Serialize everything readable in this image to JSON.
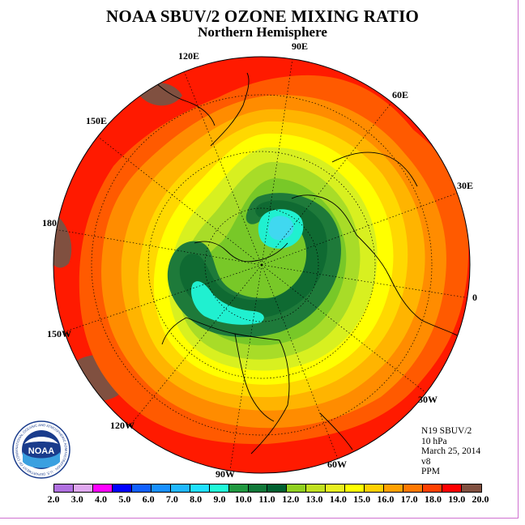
{
  "title": "NOAA SBUV/2 OZONE MIXING RATIO",
  "subtitle": "Northern Hemisphere",
  "longitude_labels": {
    "e90": "90E",
    "e60": "60E",
    "e30": "30E",
    "e0": "0",
    "w30": "30W",
    "w60": "60W",
    "w90": "90W",
    "w120": "120W",
    "w150": "150W",
    "e180": "180",
    "e150": "150E",
    "e120": "120E"
  },
  "info": {
    "satellite": "N19 SBUV/2",
    "level": "10 hPa",
    "date": "March 25, 2014",
    "version": "v8",
    "units": "PPM"
  },
  "logo": {
    "text": "NOAA",
    "ring_text": "NATIONAL OCEANIC AND ATMOSPHERIC ADMINISTRATION · U.S. DEPARTMENT OF COMMERCE"
  },
  "colorbar": {
    "labels": [
      "2.0",
      "3.0",
      "4.0",
      "5.0",
      "6.0",
      "7.0",
      "8.0",
      "9.0",
      "10.0",
      "11.0",
      "12.0",
      "13.0",
      "14.0",
      "15.0",
      "16.0",
      "17.0",
      "18.0",
      "19.0",
      "20.0"
    ],
    "colors": [
      "#b070e0",
      "#e0a8f0",
      "#ff00ff",
      "#0000ff",
      "#1060ff",
      "#1890ff",
      "#20b8ff",
      "#20e0ff",
      "#20f8d8",
      "#209840",
      "#107838",
      "#006030",
      "#90d020",
      "#c0e020",
      "#e8f020",
      "#ffff00",
      "#ffd000",
      "#ffa000",
      "#ff7800",
      "#ff4000",
      "#ff0000",
      "#805040"
    ]
  },
  "colors": {
    "red": "#ff1a00",
    "orange_red": "#ff5a00",
    "orange": "#ff8c00",
    "amber": "#ffb400",
    "gold": "#ffd800",
    "yellow": "#ffff00",
    "yellow_green": "#d8f020",
    "light_green": "#a8dc28",
    "green": "#78c828",
    "dark_green": "#1e7a3a",
    "darker_green": "#0f6a32",
    "cyan": "#20f0d0",
    "light_cyan": "#40d8f0",
    "brown": "#805040"
  }
}
